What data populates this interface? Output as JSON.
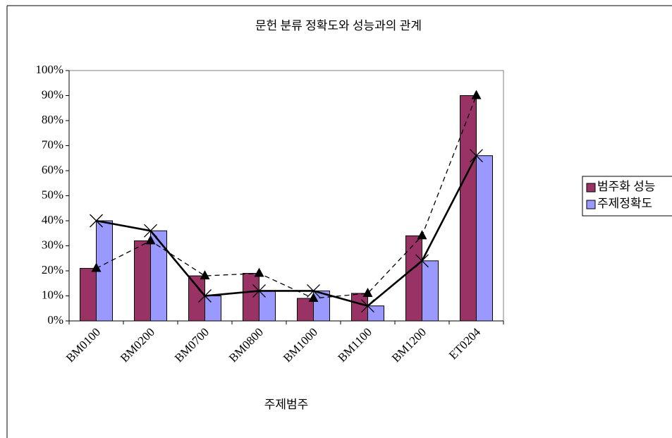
{
  "chart_data": {
    "type": "bar",
    "title": "문헌 분류 정확도와 성능과의 관계",
    "xlabel": "주제범주",
    "categories": [
      "BM0100",
      "BM0200",
      "BM0700",
      "BM0800",
      "BM1000",
      "BM1100",
      "BM1200",
      "ET0204"
    ],
    "series": [
      {
        "name": "범주화 성능",
        "color": "#993366",
        "line": "dashed",
        "marker": "triangle",
        "values": [
          21,
          32,
          18,
          19,
          9,
          11,
          34,
          90
        ]
      },
      {
        "name": "주제정확도",
        "color": "#9999ff",
        "line": "solid",
        "marker": "x",
        "values": [
          40,
          36,
          10,
          12,
          12,
          6,
          24,
          66
        ]
      }
    ],
    "ylim": [
      0,
      100
    ],
    "yticks": [
      {
        "value": 0,
        "label": "0%"
      },
      {
        "value": 10,
        "label": "10%"
      },
      {
        "value": 20,
        "label": "20%"
      },
      {
        "value": 30,
        "label": "30%"
      },
      {
        "value": 40,
        "label": "40%"
      },
      {
        "value": 50,
        "label": "50%"
      },
      {
        "value": 60,
        "label": "60%"
      },
      {
        "value": 70,
        "label": "70%"
      },
      {
        "value": 80,
        "label": "80%"
      },
      {
        "value": 90,
        "label": "90%"
      },
      {
        "value": 100,
        "label": "100%"
      }
    ],
    "legend": "right"
  }
}
